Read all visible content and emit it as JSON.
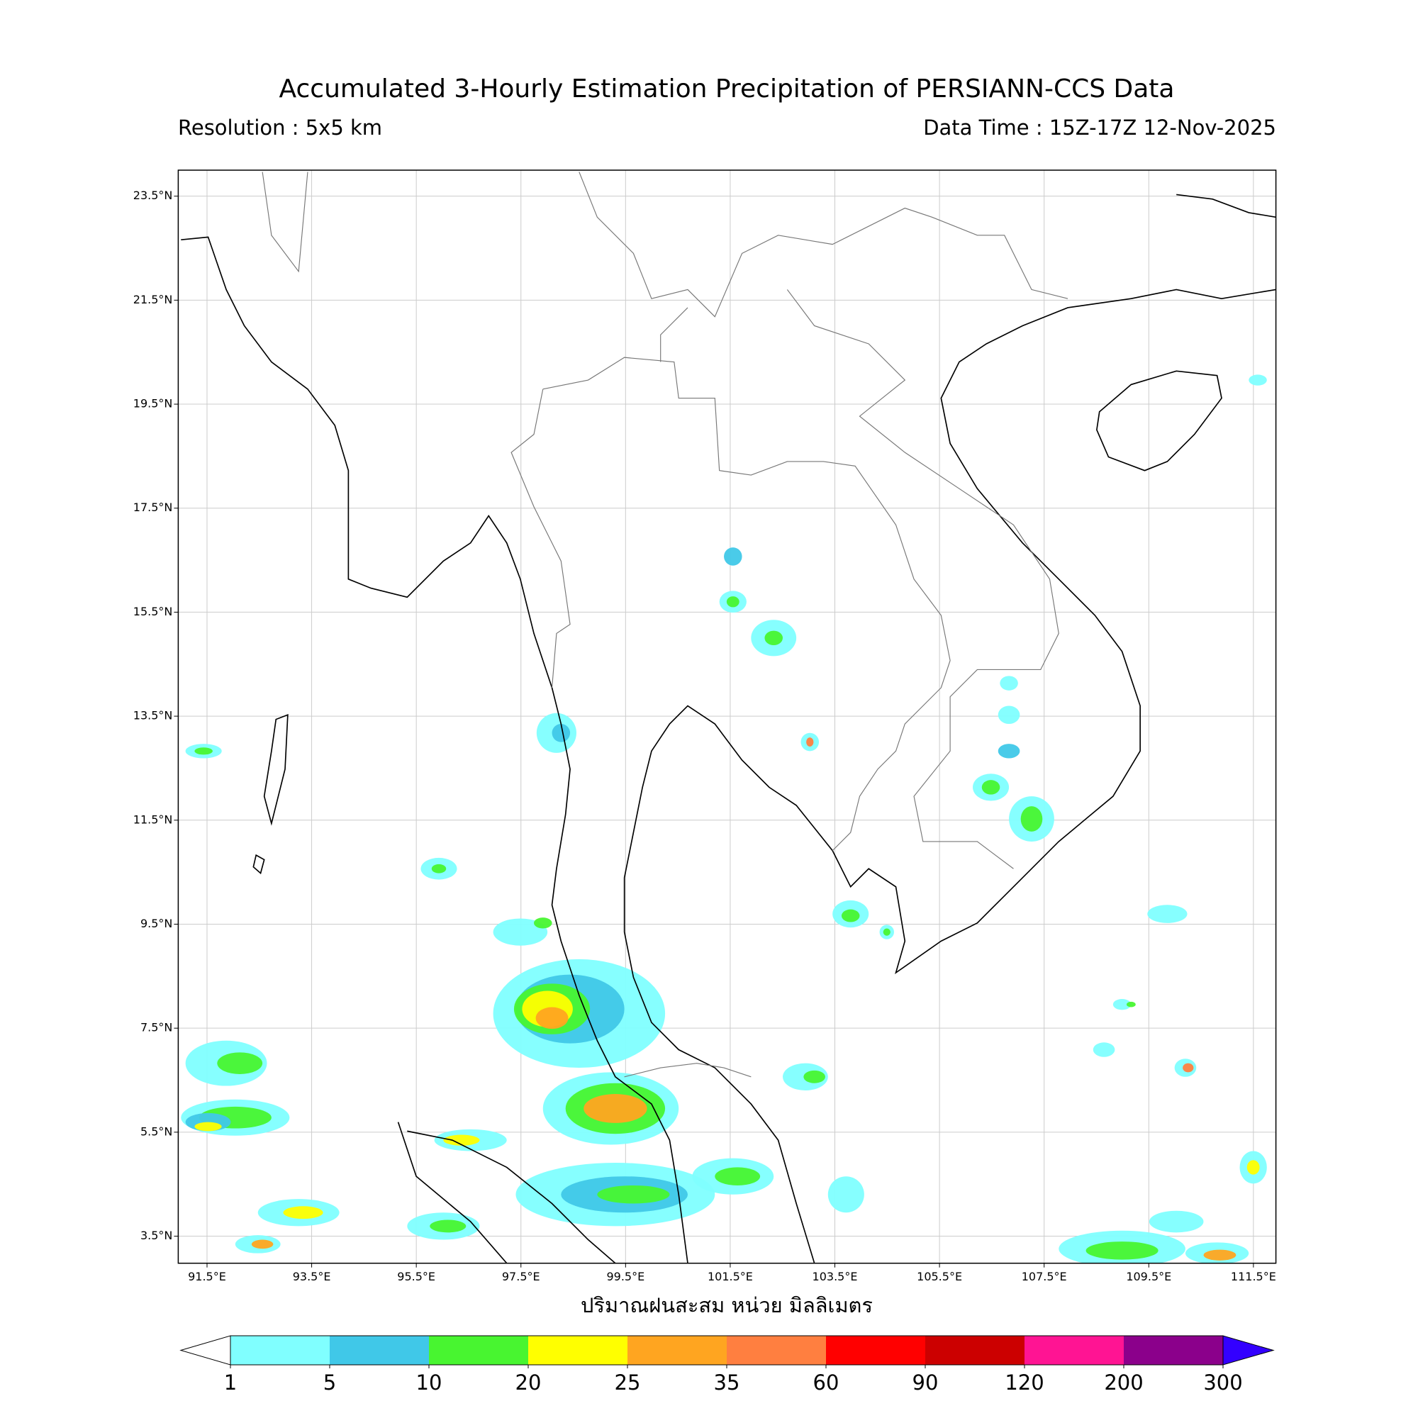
{
  "header": {
    "title": "Accumulated 3-Hourly Estimation Precipitation of PERSIANN-CCS Data",
    "resolution": "Resolution : 5x5 km",
    "data_time": "Data Time : 15Z-17Z 12-Nov-2025"
  },
  "map": {
    "xlim": [
      90.95,
      111.93
    ],
    "ylim": [
      2.98,
      24.0
    ],
    "xticks": [
      {
        "value": 91.5,
        "label": "91.5°E"
      },
      {
        "value": 93.5,
        "label": "93.5°E"
      },
      {
        "value": 95.5,
        "label": "95.5°E"
      },
      {
        "value": 97.5,
        "label": "97.5°E"
      },
      {
        "value": 99.5,
        "label": "99.5°E"
      },
      {
        "value": 101.5,
        "label": "101.5°E"
      },
      {
        "value": 103.5,
        "label": "103.5°E"
      },
      {
        "value": 105.5,
        "label": "105.5°E"
      },
      {
        "value": 107.5,
        "label": "107.5°E"
      },
      {
        "value": 109.5,
        "label": "109.5°E"
      },
      {
        "value": 111.5,
        "label": "111.5°E"
      }
    ],
    "yticks": [
      {
        "value": 3.5,
        "label": "3.5°N"
      },
      {
        "value": 5.5,
        "label": "5.5°N"
      },
      {
        "value": 7.5,
        "label": "7.5°N"
      },
      {
        "value": 9.5,
        "label": "9.5°N"
      },
      {
        "value": 11.5,
        "label": "11.5°N"
      },
      {
        "value": 13.5,
        "label": "13.5°N"
      },
      {
        "value": 15.5,
        "label": "15.5°N"
      },
      {
        "value": 17.5,
        "label": "17.5°N"
      },
      {
        "value": 19.5,
        "label": "19.5°N"
      },
      {
        "value": 21.5,
        "label": "21.5°N"
      },
      {
        "value": 23.5,
        "label": "23.5°N"
      }
    ],
    "xlabel": "ปริมาณฝนสะสม หน่วย มิลลิเมตร",
    "grid": true
  },
  "colorbar": {
    "bounds": [
      1,
      5,
      10,
      20,
      25,
      35,
      60,
      90,
      120,
      200,
      300
    ],
    "colors": [
      "#80ffff",
      "#40c8e8",
      "#48f530",
      "#ffff00",
      "#ffa520",
      "#ff7f40",
      "#ff0000",
      "#cc0000",
      "#ff1493",
      "#8b008b"
    ],
    "under_color": "#ffffff",
    "over_color": "#3300ff"
  }
}
